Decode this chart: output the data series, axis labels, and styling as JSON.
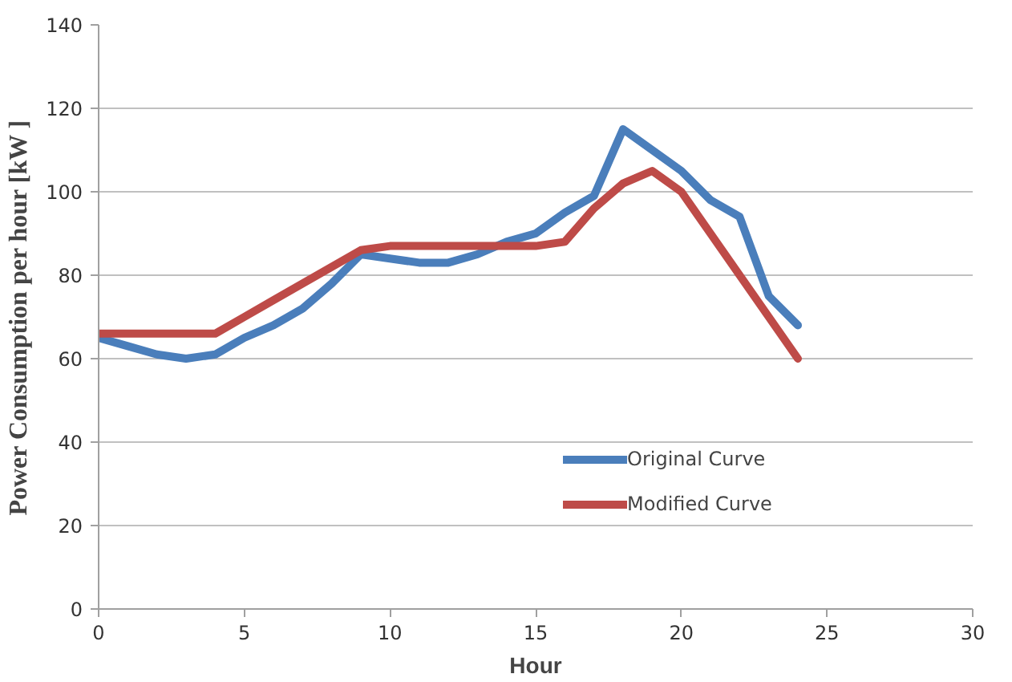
{
  "chart_data": {
    "type": "line",
    "xlabel": "Hour",
    "ylabel": "Power Consumption per hour [kW ]",
    "x": [
      0,
      1,
      2,
      3,
      4,
      5,
      6,
      7,
      8,
      9,
      10,
      11,
      12,
      13,
      14,
      15,
      16,
      17,
      18,
      19,
      20,
      21,
      22,
      23,
      24
    ],
    "series": [
      {
        "name": "Original Curve",
        "color": "#4a7ebb",
        "values": [
          65,
          63,
          61,
          60,
          61,
          65,
          68,
          72,
          78,
          85,
          84,
          83,
          83,
          85,
          88,
          90,
          95,
          99,
          115,
          110,
          105,
          98,
          94,
          75,
          68
        ]
      },
      {
        "name": "Modified Curve",
        "color": "#be4b48",
        "values": [
          66,
          66,
          66,
          66,
          66,
          70,
          74,
          78,
          82,
          86,
          87,
          87,
          87,
          87,
          87,
          87,
          88,
          96,
          102,
          105,
          100,
          90,
          80,
          70,
          60
        ]
      }
    ],
    "xlim": [
      0,
      30
    ],
    "xticks": [
      0,
      5,
      10,
      15,
      20,
      25,
      30
    ],
    "ylim": [
      0,
      140
    ],
    "yticks": [
      0,
      20,
      40,
      60,
      80,
      100,
      120,
      140
    ],
    "grid": "y",
    "legend": "bottom",
    "marker": "none",
    "line_style": "solid"
  }
}
